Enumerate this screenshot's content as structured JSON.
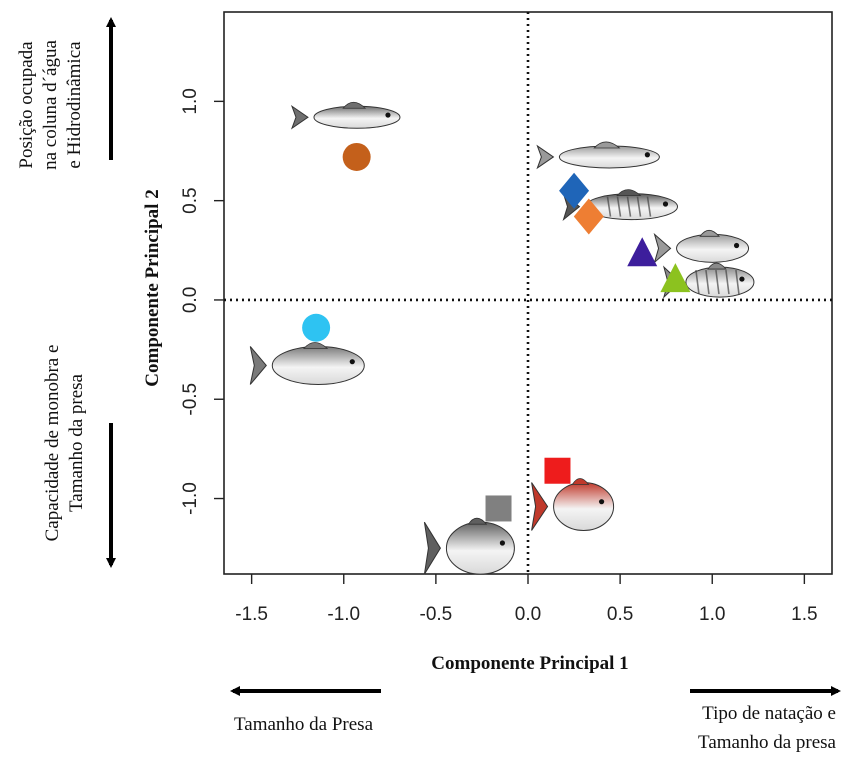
{
  "chart_data": {
    "type": "scatter",
    "xlabel": "Componente Principal 1",
    "ylabel": "Componente Principal 2",
    "xlim": [
      -1.65,
      1.65
    ],
    "ylim": [
      -1.38,
      1.45
    ],
    "x_ticks": [
      -1.5,
      -1.0,
      -0.5,
      0.0,
      0.5,
      1.0,
      1.5
    ],
    "y_ticks": [
      -1.0,
      -0.5,
      0.0,
      0.5,
      1.0
    ],
    "x_tick_labels": [
      "-1.5",
      "-1.0",
      "-0.5",
      "0.0",
      "0.5",
      "1.0",
      "1.5"
    ],
    "y_tick_labels": [
      "-1.0",
      "-0.5",
      "0.0",
      "0.5",
      "1.0"
    ],
    "reference_lines": {
      "x": 0,
      "y": 0,
      "style": "dotted"
    },
    "grid": false,
    "points": [
      {
        "x": -0.93,
        "y": 0.72,
        "shape": "circle",
        "color": "#c4601b"
      },
      {
        "x": 0.25,
        "y": 0.55,
        "shape": "diamond",
        "color": "#1f65b8"
      },
      {
        "x": 0.33,
        "y": 0.42,
        "shape": "diamond",
        "color": "#ee7e33"
      },
      {
        "x": 0.62,
        "y": 0.23,
        "shape": "triangle",
        "color": "#3d1e9c"
      },
      {
        "x": 0.8,
        "y": 0.1,
        "shape": "triangle",
        "color": "#8cc21f"
      },
      {
        "x": -1.15,
        "y": -0.14,
        "shape": "circle",
        "color": "#2ec3f2"
      },
      {
        "x": 0.16,
        "y": -0.86,
        "shape": "square",
        "color": "#ee1c1c"
      },
      {
        "x": -0.16,
        "y": -1.05,
        "shape": "square",
        "color": "#808080"
      }
    ],
    "fish_icons": [
      {
        "x": -0.95,
        "y": 0.92,
        "kind": "tailed-slender",
        "color": "#6f6f6f"
      },
      {
        "x": 0.42,
        "y": 0.72,
        "kind": "slender-light",
        "color": "#9a9a9a"
      },
      {
        "x": 0.54,
        "y": 0.47,
        "kind": "spotted",
        "color": "#555555"
      },
      {
        "x": 0.98,
        "y": 0.26,
        "kind": "perch",
        "color": "#9a9a9a"
      },
      {
        "x": 1.02,
        "y": 0.09,
        "kind": "striped-perch",
        "color": "#8a8a8a"
      },
      {
        "x": -1.16,
        "y": -0.33,
        "kind": "deep-body",
        "color": "#7a7a7a"
      },
      {
        "x": 0.28,
        "y": -1.04,
        "kind": "piranha-red",
        "color": "#c0392b"
      },
      {
        "x": -0.28,
        "y": -1.25,
        "kind": "piranha-grey",
        "color": "#5f5f5f"
      }
    ]
  },
  "annotations": {
    "top_left": [
      "Posição ocupada",
      "na coluna d´água",
      "e Hidrodinâmica"
    ],
    "bottom_left": [
      "Capacidade de monobra e",
      "Tamanho da presa"
    ],
    "bottom_left_caption": "Tamanho da Presa",
    "bottom_right_caption": [
      "Tipo de natação e",
      "Tamanho da presa"
    ]
  }
}
